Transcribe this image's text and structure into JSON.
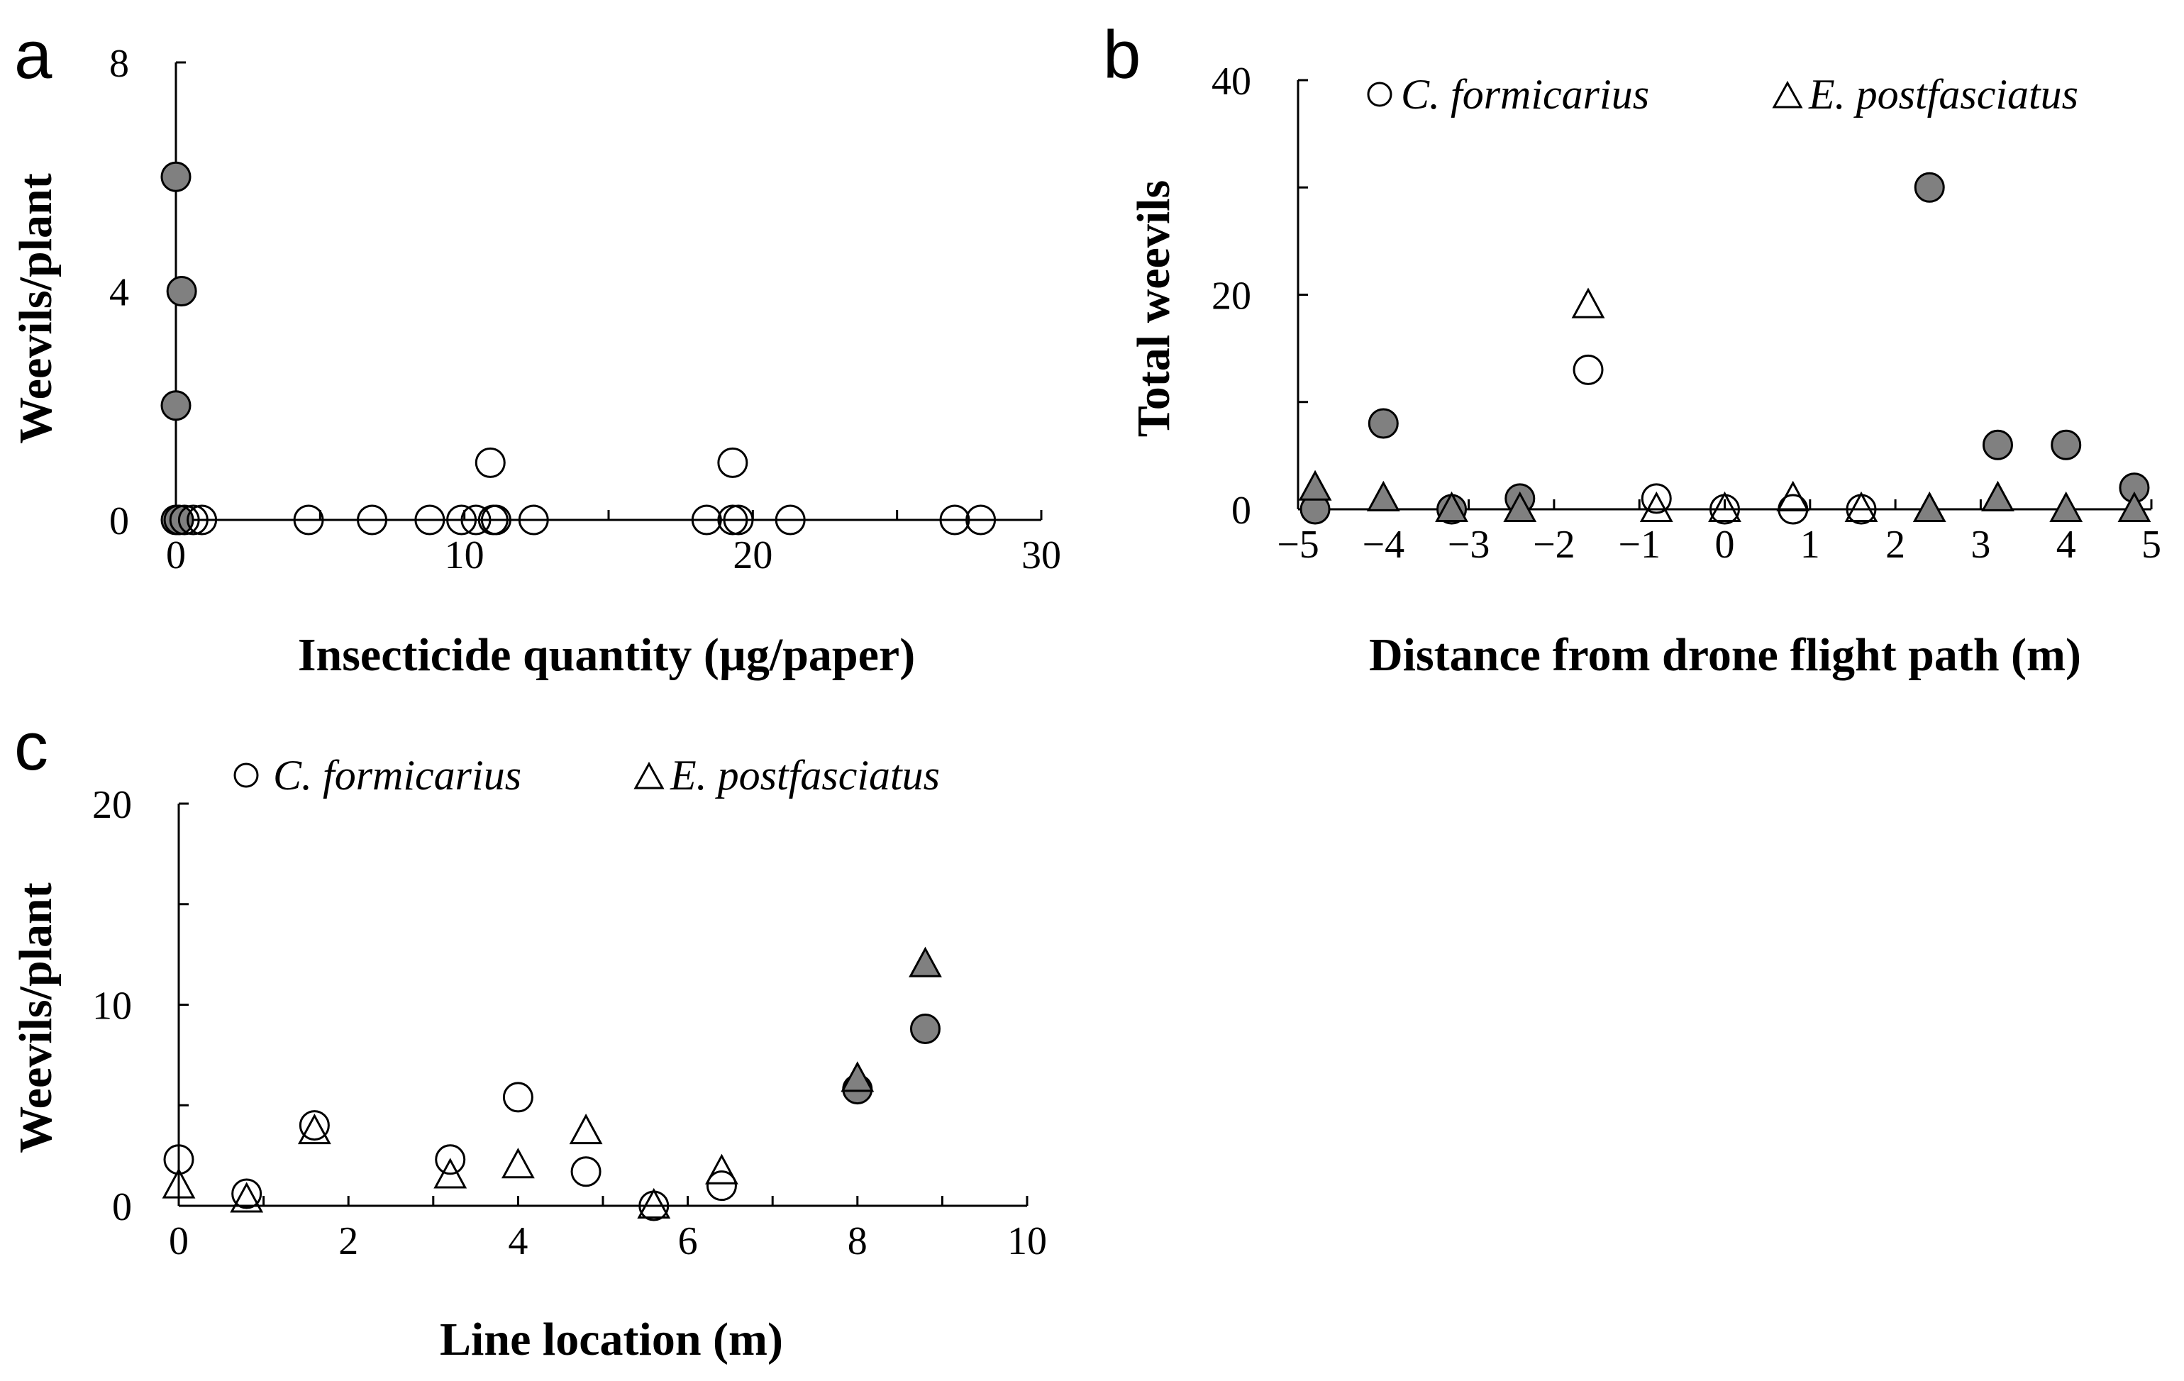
{
  "chart_data": [
    {
      "panel": "a",
      "type": "scatter",
      "xlabel": "Insecticide quantity (µg/paper)",
      "ylabel": "Weevils/plant",
      "xlim": [
        0,
        30
      ],
      "ylim": [
        0,
        8
      ],
      "xticks": [
        0,
        10,
        20,
        30
      ],
      "yticks": [
        0,
        4,
        8
      ],
      "grid": false,
      "series": [
        {
          "marker": "circle",
          "fill": "filled",
          "color": "#808080",
          "points": [
            [
              0,
              6
            ],
            [
              0.2,
              4
            ],
            [
              0,
              2
            ],
            [
              0,
              0
            ],
            [
              0.1,
              0
            ]
          ]
        },
        {
          "marker": "circle",
          "fill": "open",
          "points": [
            [
              0.3,
              0
            ],
            [
              0.6,
              0
            ],
            [
              0.9,
              0
            ],
            [
              4.6,
              0
            ],
            [
              6.8,
              0
            ],
            [
              8.8,
              0
            ],
            [
              9.9,
              0
            ],
            [
              10.4,
              0
            ],
            [
              10.9,
              1
            ],
            [
              11.0,
              0
            ],
            [
              11.1,
              0
            ],
            [
              12.4,
              0
            ],
            [
              18.4,
              0
            ],
            [
              19.3,
              1
            ],
            [
              19.3,
              0
            ],
            [
              19.5,
              0
            ],
            [
              21.3,
              0
            ],
            [
              27.0,
              0
            ],
            [
              27.9,
              0
            ]
          ]
        }
      ]
    },
    {
      "panel": "b",
      "type": "scatter",
      "xlabel": "Distance from drone flight path (m)",
      "ylabel": "Total weevils",
      "xlim": [
        -5,
        5
      ],
      "ylim": [
        0,
        40
      ],
      "xticks": [
        -5,
        -4,
        -3,
        -2,
        -1,
        0,
        1,
        2,
        3,
        4,
        5
      ],
      "yticks": [
        0,
        20,
        40
      ],
      "grid": false,
      "legend_position": "top",
      "legend": [
        {
          "label": "C. formicarius",
          "marker": "circle"
        },
        {
          "label": "E. postfasciatus",
          "marker": "triangle"
        }
      ],
      "series": [
        {
          "name": "C. formicarius",
          "marker": "circle",
          "fill": "filled",
          "color": "#808080",
          "points": [
            [
              -4.8,
              0
            ],
            [
              -4,
              8
            ],
            [
              -3.2,
              0
            ],
            [
              -2.4,
              1
            ],
            [
              2.4,
              30
            ],
            [
              3.2,
              6
            ],
            [
              4,
              6
            ],
            [
              4.8,
              2
            ]
          ]
        },
        {
          "name": "C. formicarius",
          "marker": "circle",
          "fill": "open",
          "points": [
            [
              -1.6,
              13
            ],
            [
              -0.8,
              1
            ],
            [
              0,
              0
            ],
            [
              0.8,
              0
            ],
            [
              1.6,
              0
            ]
          ]
        },
        {
          "name": "E. postfasciatus",
          "marker": "triangle",
          "fill": "filled",
          "color": "#808080",
          "points": [
            [
              -4.8,
              2
            ],
            [
              -4,
              1
            ],
            [
              -3.2,
              0
            ],
            [
              -2.4,
              0
            ],
            [
              2.4,
              0
            ],
            [
              3.2,
              1
            ],
            [
              4,
              0
            ],
            [
              4.8,
              0
            ]
          ]
        },
        {
          "name": "E. postfasciatus",
          "marker": "triangle",
          "fill": "open",
          "points": [
            [
              -1.6,
              19
            ],
            [
              -0.8,
              0
            ],
            [
              0,
              0
            ],
            [
              0.8,
              1
            ],
            [
              1.6,
              0
            ]
          ]
        }
      ]
    },
    {
      "panel": "c",
      "type": "scatter",
      "xlabel": "Line location (m)",
      "ylabel": "Weevils/plant",
      "xlim": [
        0,
        10
      ],
      "ylim": [
        0,
        20
      ],
      "xticks": [
        0,
        2,
        4,
        6,
        8,
        10
      ],
      "yticks": [
        0,
        10,
        20
      ],
      "grid": false,
      "legend_position": "top",
      "legend": [
        {
          "label": "C. formicarius",
          "marker": "circle"
        },
        {
          "label": "E. postfasciatus",
          "marker": "triangle"
        }
      ],
      "series": [
        {
          "name": "C. formicarius",
          "marker": "circle",
          "fill": "open",
          "points": [
            [
              0,
              2.3
            ],
            [
              0.8,
              0.6
            ],
            [
              1.6,
              4
            ],
            [
              3.2,
              2.3
            ],
            [
              4,
              5.4
            ],
            [
              4.8,
              1.7
            ],
            [
              5.6,
              0
            ],
            [
              6.4,
              1
            ]
          ]
        },
        {
          "name": "C. formicarius",
          "marker": "circle",
          "fill": "filled",
          "color": "#808080",
          "points": [
            [
              8,
              5.8
            ],
            [
              8.8,
              8.8
            ]
          ]
        },
        {
          "name": "E. postfasciatus",
          "marker": "triangle",
          "fill": "open",
          "points": [
            [
              0,
              1
            ],
            [
              0.8,
              0.3
            ],
            [
              1.6,
              3.7
            ],
            [
              3.2,
              1.5
            ],
            [
              4,
              2
            ],
            [
              4.8,
              3.7
            ],
            [
              5.6,
              0
            ],
            [
              6.4,
              1.7
            ]
          ]
        },
        {
          "name": "E. postfasciatus",
          "marker": "triangle",
          "fill": "filled",
          "color": "#808080",
          "points": [
            [
              8,
              6.3
            ],
            [
              8.8,
              12
            ]
          ]
        }
      ]
    }
  ]
}
